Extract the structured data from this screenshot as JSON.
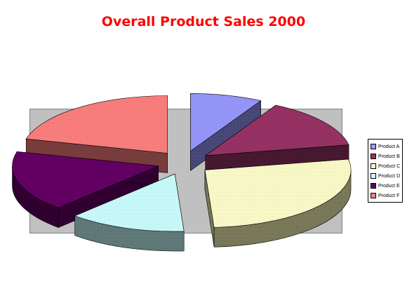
{
  "chart_data": {
    "type": "pie",
    "title": "Overall Product Sales 2000",
    "title_color": "#ff0000",
    "exploded": true,
    "style": "3d",
    "legend_position": "right",
    "plot_area_color": "#c0c0c0",
    "categories": [
      "Product A",
      "Product B",
      "Product C",
      "Product D",
      "Product E",
      "Product F"
    ],
    "values": [
      8,
      14,
      27,
      13,
      17,
      21
    ],
    "colors": [
      "#9999ff",
      "#993366",
      "#ffffcc",
      "#ccffff",
      "#660066",
      "#ff8080"
    ],
    "side_colors": [
      "#4c4c80",
      "#4c1a33",
      "#80805f",
      "#668080",
      "#330033",
      "#804040"
    ]
  }
}
